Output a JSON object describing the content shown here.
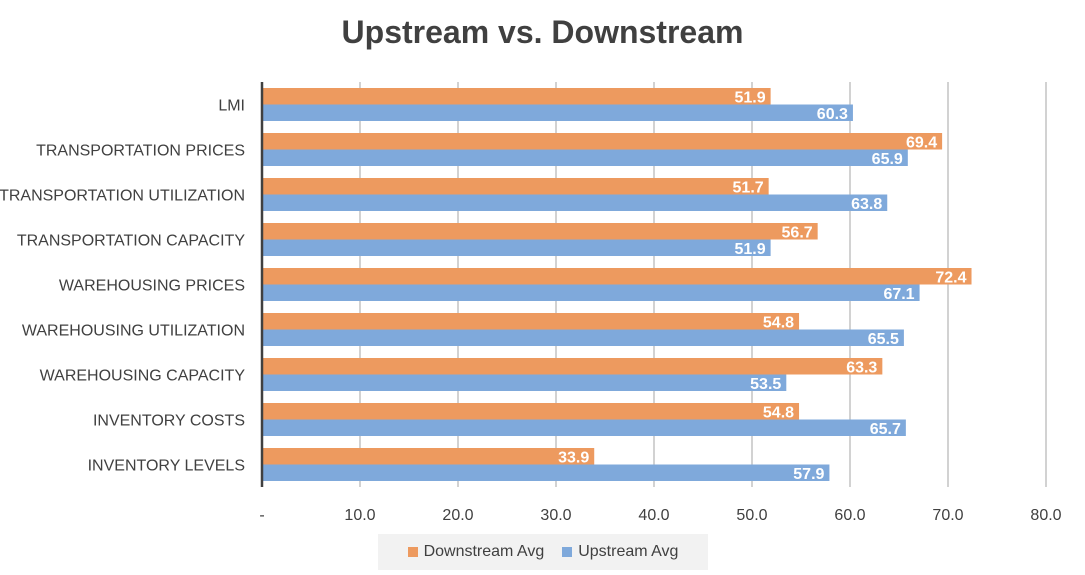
{
  "chart_data": {
    "type": "bar",
    "orientation": "horizontal",
    "title": "Upstream vs. Downstream",
    "categories": [
      "LMI",
      "TRANSPORTATION PRICES",
      "TRANSPORTATION UTILIZATION",
      "TRANSPORTATION CAPACITY",
      "WAREHOUSING PRICES",
      "WAREHOUSING UTILIZATION",
      "WAREHOUSING CAPACITY",
      "INVENTORY COSTS",
      "INVENTORY LEVELS"
    ],
    "series": [
      {
        "name": "Downstream Avg",
        "color": "#ed9a5f",
        "values": [
          51.9,
          69.4,
          51.7,
          56.7,
          72.4,
          54.8,
          63.3,
          54.8,
          33.9
        ]
      },
      {
        "name": "Upstream Avg",
        "color": "#7fa9db",
        "values": [
          60.3,
          65.9,
          63.8,
          51.9,
          67.1,
          65.5,
          53.5,
          65.7,
          57.9
        ]
      }
    ],
    "xlim": [
      0,
      80
    ],
    "xticks": [
      "-",
      "10.0",
      "20.0",
      "30.0",
      "40.0",
      "50.0",
      "60.0",
      "70.0",
      "80.0"
    ],
    "grid": "vertical",
    "legend": "bottom",
    "data_labels": true
  }
}
